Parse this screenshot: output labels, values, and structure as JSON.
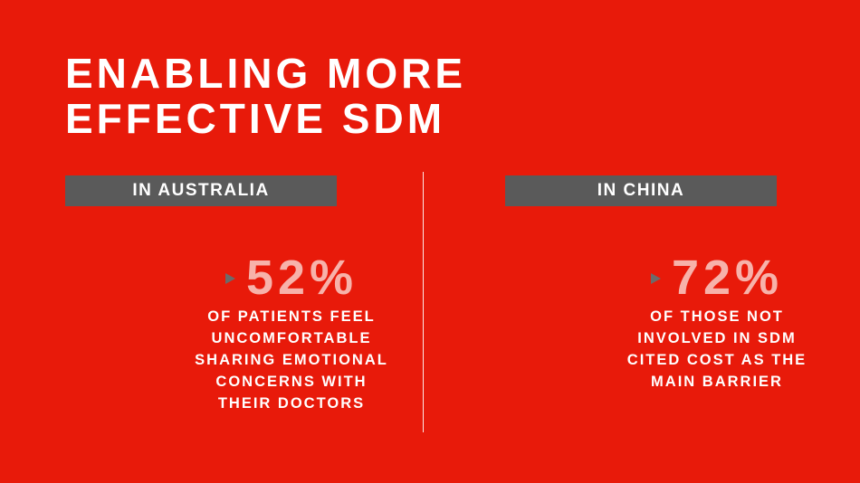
{
  "title": {
    "line1": "ENABLING MORE",
    "line2": "EFFECTIVE SDM"
  },
  "left": {
    "label": "IN AUSTRALIA",
    "stat": "52%",
    "caption": [
      "OF PATIENTS FEEL",
      "UNCOMFORTABLE",
      "SHARING EMOTIONAL",
      "CONCERNS WITH",
      "THEIR DOCTORS"
    ]
  },
  "right": {
    "label": "IN CHINA",
    "stat": "72%",
    "caption": [
      "OF THOSE NOT",
      "INVOLVED IN SDM",
      "CITED COST AS THE",
      "MAIN BARRIER"
    ]
  },
  "colors": {
    "background": "#e81a0a",
    "label_background": "#5a5a5a",
    "stat_number": "#f7b2aa",
    "text": "#ffffff"
  },
  "icons": {
    "bullet": "triangle-arrow-right-icon"
  }
}
